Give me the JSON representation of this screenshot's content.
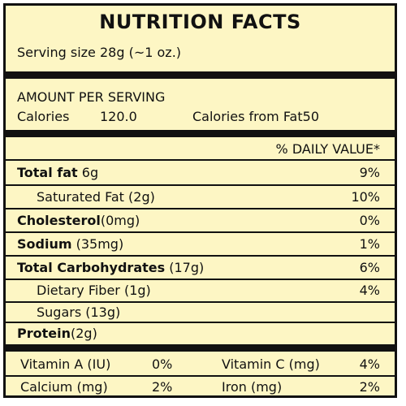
{
  "title": "NUTRITION FACTS",
  "serving_size": "Serving size 28g (~1 oz.)",
  "amount_per_serving": "AMOUNT PER SERVING",
  "calories": {
    "label": "Calories",
    "value": "120.0",
    "from_fat": "Calories from Fat50"
  },
  "daily_value_header": "% DAILY VALUE*",
  "nutrients": [
    {
      "name": "Total fat",
      "amount": "6g",
      "dv": "9%"
    },
    {
      "name": "Saturated Fat (2g)",
      "amount": "",
      "dv": "10%"
    },
    {
      "name": "Cholesterol",
      "amount": "(0mg)",
      "dv": "0%"
    },
    {
      "name": "Sodium",
      "amount": "(35mg)",
      "dv": "1%"
    },
    {
      "name": "Total Carbohydrates",
      "amount": "(17g)",
      "dv": "6%"
    },
    {
      "name": "Dietary Fiber (1g)",
      "amount": "",
      "dv": "4%"
    },
    {
      "name": "Sugars (13g)",
      "amount": "",
      "dv": ""
    },
    {
      "name": "Protein",
      "amount": "(2g)",
      "dv": ""
    }
  ],
  "vitamins": [
    {
      "name": "Vitamin A (IU)",
      "dv": "0%"
    },
    {
      "name": "Vitamin C (mg)",
      "dv": "4%"
    },
    {
      "name": "Calcium (mg)",
      "dv": "2%"
    },
    {
      "name": "Iron (mg)",
      "dv": "2%"
    }
  ]
}
